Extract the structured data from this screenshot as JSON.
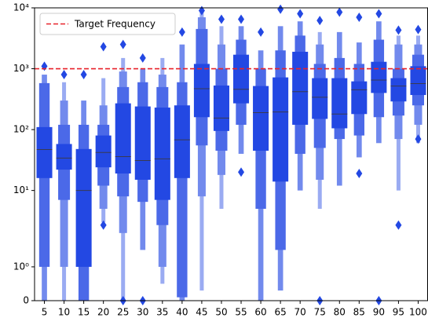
{
  "chart_data": {
    "type": "boxen",
    "categories": [
      5,
      10,
      15,
      20,
      25,
      30,
      35,
      40,
      45,
      50,
      55,
      60,
      65,
      70,
      75,
      80,
      85,
      90,
      95,
      100
    ],
    "color": "#2348e3",
    "yscale": "symlog",
    "linthresh": 2,
    "ylim": [
      0,
      10000
    ],
    "yticks": [
      0,
      {
        "value": 1,
        "label": "10⁰"
      },
      {
        "value": 10,
        "label": "10¹"
      },
      {
        "value": 100,
        "label": "10²"
      },
      {
        "value": 1000,
        "label": "10³"
      },
      {
        "value": 10000,
        "label": "10⁴"
      }
    ],
    "legend": "upper left",
    "target": {
      "name": "Target Frequency",
      "value": 1000,
      "color": "#e8222a"
    },
    "boxes": [
      {
        "median": 47,
        "levels": [
          [
            16,
            110
          ],
          [
            1,
            580
          ],
          [
            0,
            800
          ]
        ],
        "outliers": [
          1100
        ]
      },
      {
        "median": 34,
        "levels": [
          [
            22,
            58
          ],
          [
            7,
            120
          ],
          [
            1,
            300
          ],
          [
            0,
            600
          ]
        ],
        "outliers": [
          800
        ]
      },
      {
        "median": 10,
        "levels": [
          [
            1,
            48
          ],
          [
            0,
            120
          ],
          [
            0,
            300
          ]
        ],
        "outliers": [
          800
        ]
      },
      {
        "median": 42,
        "levels": [
          [
            24,
            80
          ],
          [
            12,
            120
          ],
          [
            5,
            250
          ],
          [
            3,
            700
          ]
        ],
        "outliers": [
          2.7,
          2300
        ]
      },
      {
        "median": 36,
        "levels": [
          [
            19,
            270
          ],
          [
            8,
            500
          ],
          [
            2,
            900
          ],
          [
            0,
            1500
          ]
        ],
        "outliers": [
          0,
          2500
        ]
      },
      {
        "median": 31,
        "levels": [
          [
            15,
            240
          ],
          [
            6.5,
            600
          ],
          [
            1.5,
            1000
          ]
        ],
        "outliers": [
          0,
          1500
        ]
      },
      {
        "median": 33,
        "levels": [
          [
            7,
            230
          ],
          [
            2.7,
            500
          ],
          [
            1,
            800
          ],
          [
            0.5,
            1500
          ]
        ],
        "outliers": []
      },
      {
        "median": 68,
        "levels": [
          [
            16,
            250
          ],
          [
            0.1,
            600
          ],
          [
            0,
            2500
          ]
        ],
        "outliers": [
          4000
        ]
      },
      {
        "median": 470,
        "levels": [
          [
            160,
            1200
          ],
          [
            55,
            4500
          ],
          [
            8,
            7000
          ],
          [
            0.3,
            9000
          ]
        ],
        "outliers": [
          9000
        ]
      },
      {
        "median": 155,
        "levels": [
          [
            95,
            530
          ],
          [
            45,
            1000
          ],
          [
            18,
            2500
          ],
          [
            5,
            5000
          ]
        ],
        "outliers": [
          6500
        ]
      },
      {
        "median": 460,
        "levels": [
          [
            270,
            1700
          ],
          [
            120,
            3000
          ],
          [
            40,
            5000
          ]
        ],
        "outliers": [
          20,
          6500
        ]
      },
      {
        "median": 190,
        "levels": [
          [
            45,
            520
          ],
          [
            5,
            1000
          ],
          [
            0,
            2000
          ]
        ],
        "outliers": [
          4000
        ]
      },
      {
        "median": 195,
        "levels": [
          [
            14,
            720
          ],
          [
            1.5,
            2000
          ],
          [
            0.3,
            5000
          ]
        ],
        "outliers": [
          9500
        ]
      },
      {
        "median": 420,
        "levels": [
          [
            120,
            1900
          ],
          [
            40,
            3500
          ],
          [
            10,
            6000
          ]
        ],
        "outliers": [
          8000
        ]
      },
      {
        "median": 340,
        "levels": [
          [
            150,
            700
          ],
          [
            50,
            1200
          ],
          [
            15,
            2500
          ],
          [
            5,
            4000
          ]
        ],
        "outliers": [
          0,
          6200
        ]
      },
      {
        "median": 180,
        "levels": [
          [
            105,
            700
          ],
          [
            70,
            1500
          ],
          [
            12,
            4000
          ]
        ],
        "outliers": [
          8500
        ]
      },
      {
        "median": 450,
        "levels": [
          [
            180,
            620
          ],
          [
            80,
            1200
          ],
          [
            35,
            2700
          ]
        ],
        "outliers": [
          19,
          7000
        ]
      },
      {
        "median": 650,
        "levels": [
          [
            400,
            1300
          ],
          [
            160,
            3000
          ],
          [
            60,
            6000
          ]
        ],
        "outliers": [
          0,
          8000
        ]
      },
      {
        "median": 520,
        "levels": [
          [
            290,
            700
          ],
          [
            170,
            1000
          ],
          [
            70,
            2500
          ],
          [
            10,
            3500
          ]
        ],
        "outliers": [
          2.7,
          4300
        ]
      },
      {
        "median": 570,
        "levels": [
          [
            370,
            1100
          ],
          [
            250,
            1700
          ],
          [
            120,
            2500
          ],
          [
            60,
            3500
          ]
        ],
        "outliers": [
          70,
          4400
        ]
      }
    ]
  }
}
